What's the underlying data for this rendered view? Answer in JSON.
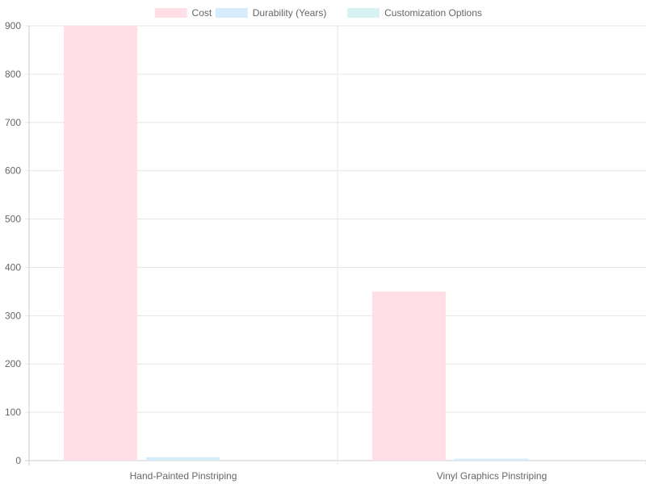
{
  "chart_data": {
    "type": "bar",
    "title": "",
    "xlabel": "",
    "ylabel": "",
    "categories": [
      "Hand-Painted Pinstriping",
      "Vinyl Graphics Pinstriping"
    ],
    "series": [
      {
        "name": "Cost",
        "values": [
          900,
          350
        ],
        "color": "#ffdfe5",
        "border": "#ffb1c1"
      },
      {
        "name": "Durability (Years)",
        "values": [
          7,
          4
        ],
        "color": "#d7ecfb",
        "border": "#9ad0f5"
      },
      {
        "name": "Customization Options",
        "values": [
          0,
          0
        ],
        "color": "#d7f2f2",
        "border": "#a5dfdf"
      }
    ],
    "ylim": [
      0,
      900
    ],
    "yticks": [
      0,
      100,
      200,
      300,
      400,
      500,
      600,
      700,
      800,
      900
    ],
    "grid": true,
    "legend": "top"
  }
}
